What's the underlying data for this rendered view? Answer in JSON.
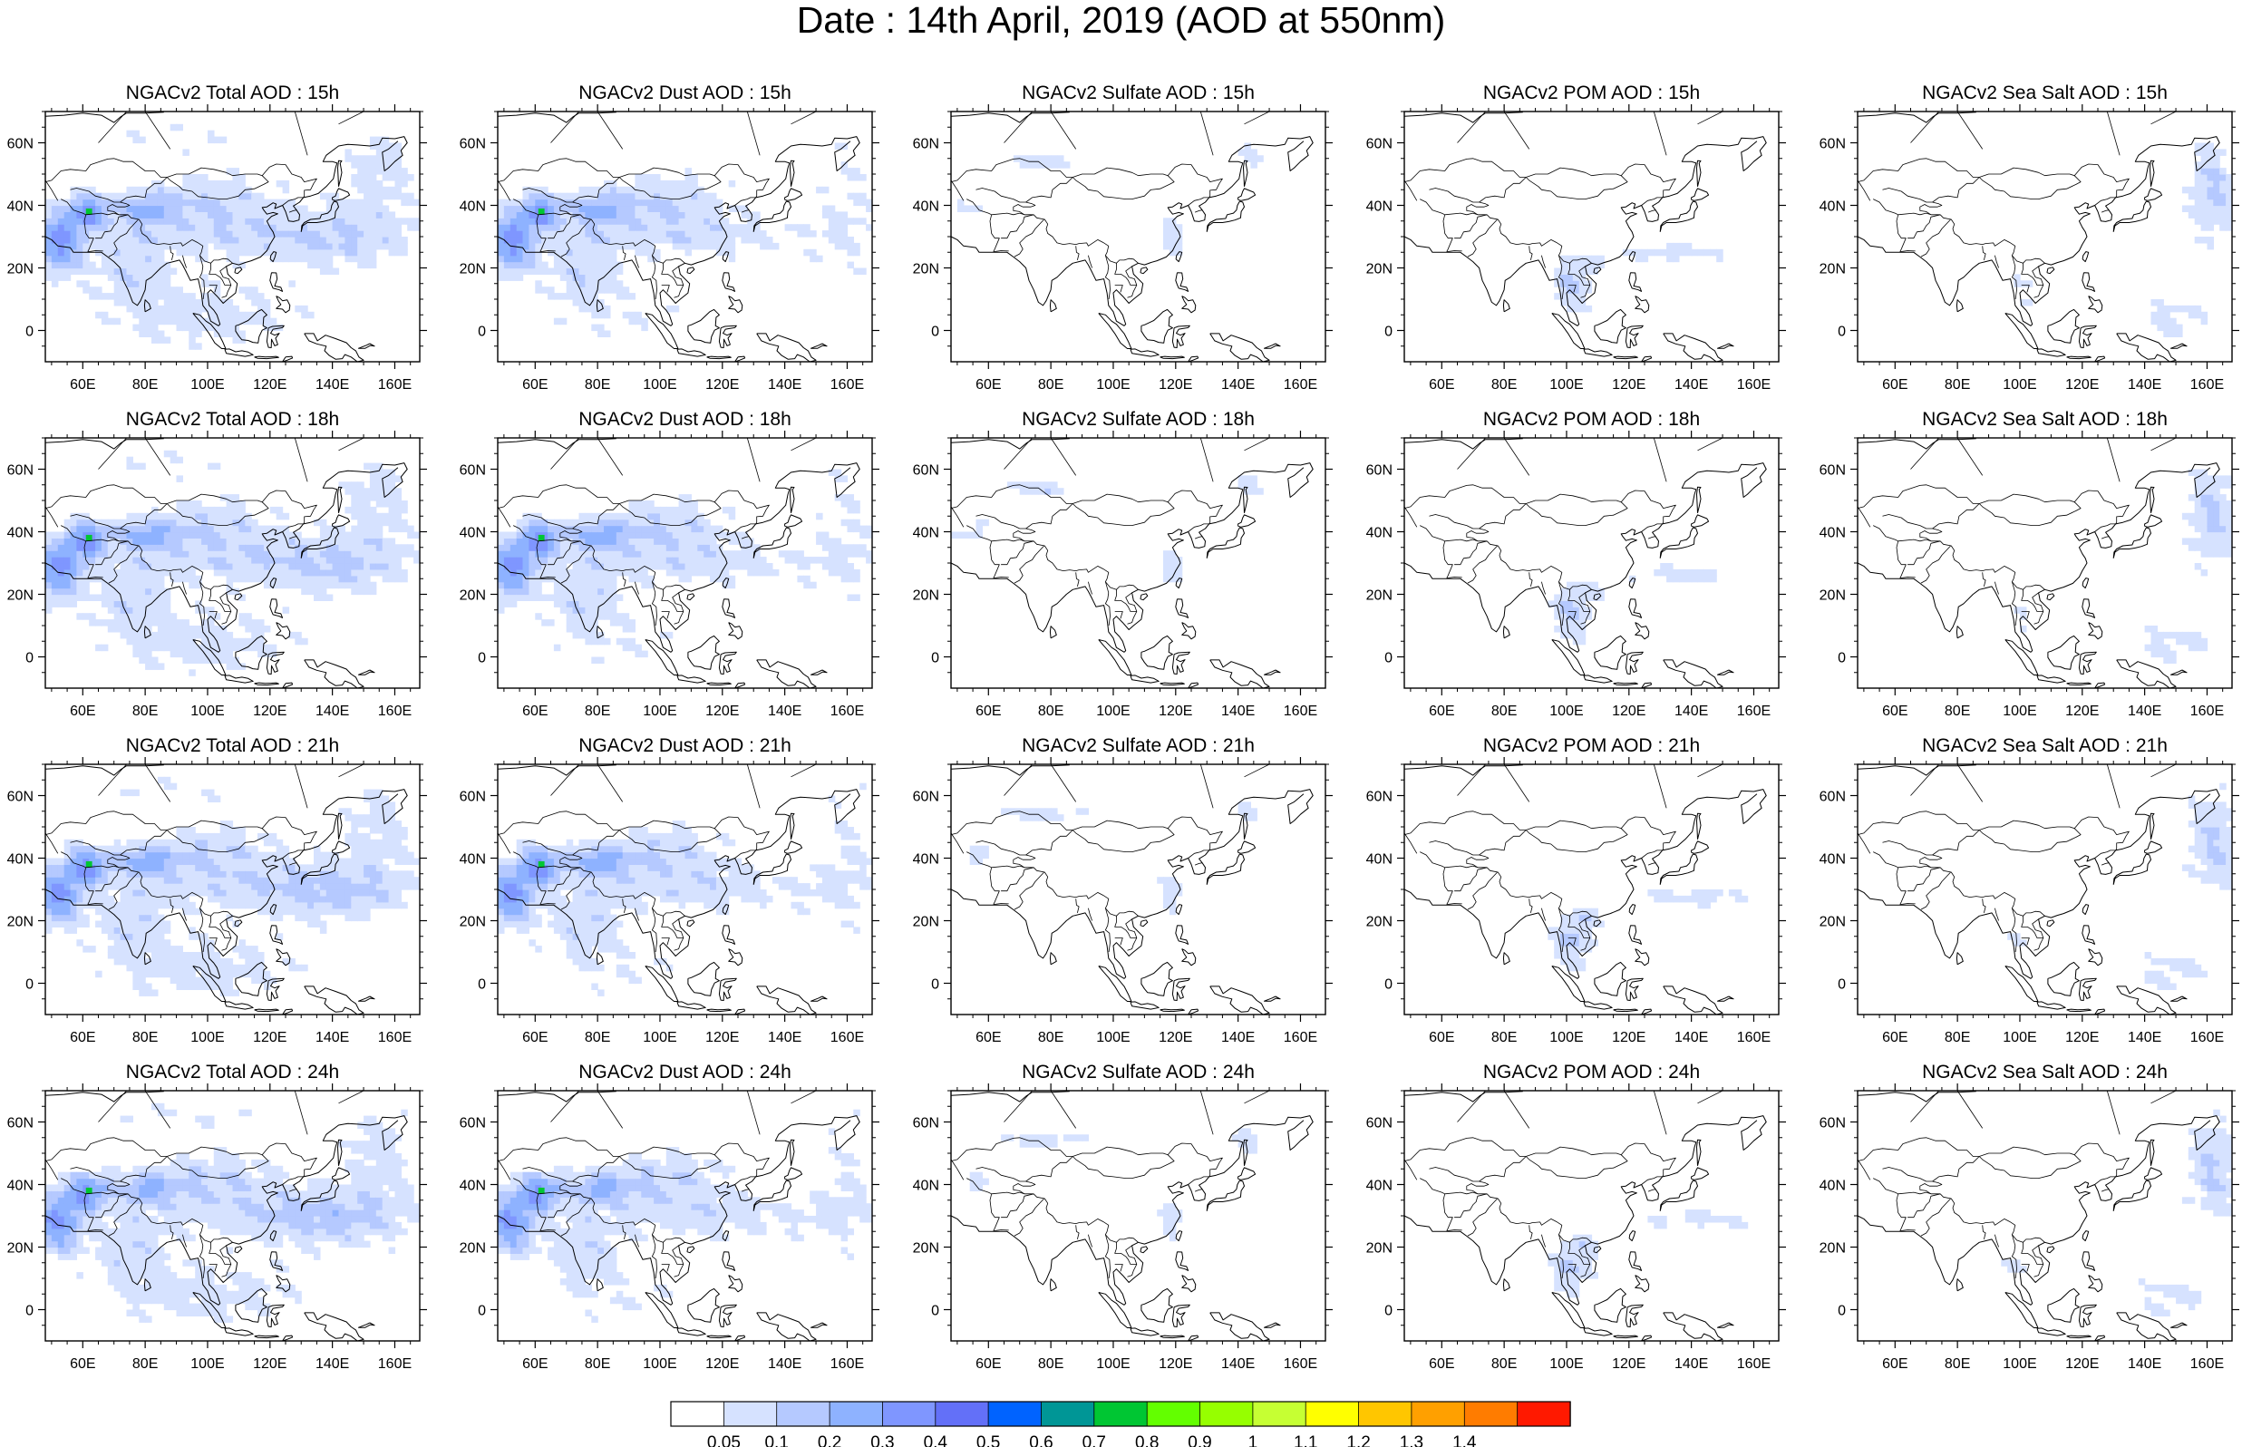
{
  "title": "Date : 14th April, 2019 (AOD at 550nm)",
  "chart_data": {
    "type": "heatmap",
    "description_units": "AOD at 550nm",
    "grid": false,
    "x_ticks": [
      "60E",
      "80E",
      "100E",
      "120E",
      "140E",
      "160E"
    ],
    "x_tick_values": [
      60,
      80,
      100,
      120,
      140,
      160
    ],
    "xlim": [
      48,
      168
    ],
    "y_ticks": [
      "60N",
      "40N",
      "20N",
      "0"
    ],
    "y_tick_values": [
      60,
      40,
      20,
      0
    ],
    "ylim": [
      -10,
      70
    ],
    "panels": [
      {
        "title": "NGACv2 Total AOD : 15h",
        "species": "total",
        "hour": 15
      },
      {
        "title": "NGACv2 Dust AOD : 15h",
        "species": "dust",
        "hour": 15
      },
      {
        "title": "NGACv2 Sulfate AOD : 15h",
        "species": "sulfate",
        "hour": 15
      },
      {
        "title": "NGACv2 POM AOD : 15h",
        "species": "pom",
        "hour": 15
      },
      {
        "title": "NGACv2 Sea Salt AOD : 15h",
        "species": "seasalt",
        "hour": 15
      },
      {
        "title": "NGACv2 Total AOD : 18h",
        "species": "total",
        "hour": 18
      },
      {
        "title": "NGACv2 Dust AOD : 18h",
        "species": "dust",
        "hour": 18
      },
      {
        "title": "NGACv2 Sulfate AOD : 18h",
        "species": "sulfate",
        "hour": 18
      },
      {
        "title": "NGACv2 POM AOD : 18h",
        "species": "pom",
        "hour": 18
      },
      {
        "title": "NGACv2 Sea Salt AOD : 18h",
        "species": "seasalt",
        "hour": 18
      },
      {
        "title": "NGACv2 Total AOD : 21h",
        "species": "total",
        "hour": 21
      },
      {
        "title": "NGACv2 Dust AOD : 21h",
        "species": "dust",
        "hour": 21
      },
      {
        "title": "NGACv2 Sulfate AOD : 21h",
        "species": "sulfate",
        "hour": 21
      },
      {
        "title": "NGACv2 POM AOD : 21h",
        "species": "pom",
        "hour": 21
      },
      {
        "title": "NGACv2 Sea Salt AOD : 21h",
        "species": "seasalt",
        "hour": 21
      },
      {
        "title": "NGACv2 Total AOD : 24h",
        "species": "total",
        "hour": 24
      },
      {
        "title": "NGACv2 Dust AOD : 24h",
        "species": "dust",
        "hour": 24
      },
      {
        "title": "NGACv2 Sulfate AOD : 24h",
        "species": "sulfate",
        "hour": 24
      },
      {
        "title": "NGACv2 POM AOD : 24h",
        "species": "pom",
        "hour": 24
      },
      {
        "title": "NGACv2 Sea Salt  AOD : 24h",
        "species": "seasalt",
        "hour": 24
      }
    ],
    "colorbar": {
      "labels": [
        "0.05",
        "0.1",
        "0.2",
        "0.3",
        "0.4",
        "0.5",
        "0.6",
        "0.7",
        "0.8",
        "0.9",
        "1",
        "1.1",
        "1.2",
        "1.3",
        "1.4"
      ],
      "colors": [
        "#ffffff",
        "#d6e2ff",
        "#b5c9ff",
        "#8eb2ff",
        "#7f96ff",
        "#6370f8",
        "#0063ff",
        "#009696",
        "#00c633",
        "#63ff00",
        "#96ff00",
        "#c6ff33",
        "#ffff00",
        "#ffc600",
        "#ffa000",
        "#ff7c00",
        "#ff1900"
      ]
    }
  }
}
